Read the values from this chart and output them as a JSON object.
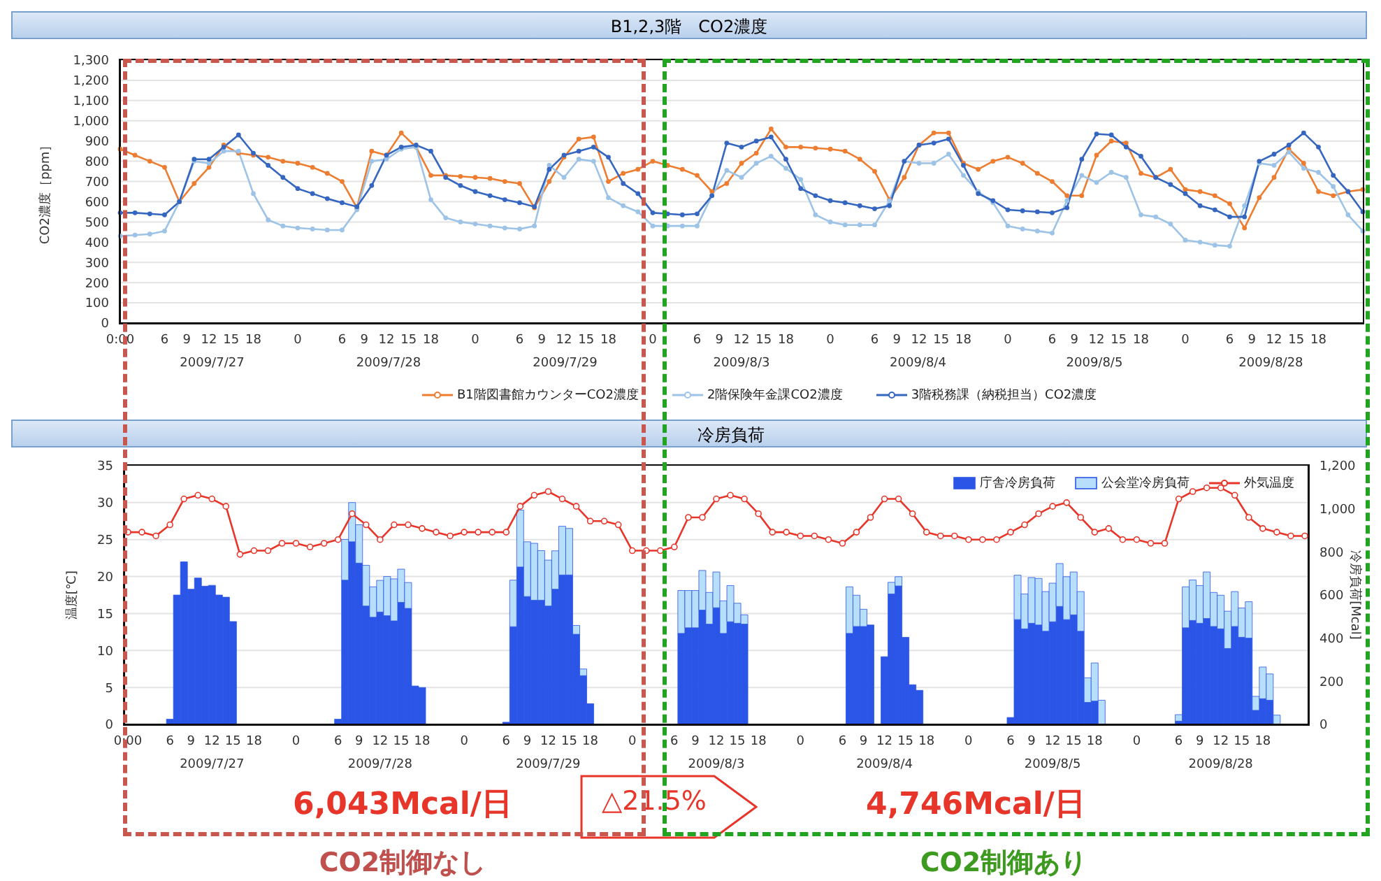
{
  "chart_data": [
    {
      "type": "line",
      "title": "B1,2,3階　CO2濃度",
      "ylabel": "CO2濃度［ppm］",
      "legend": "bottom",
      "grid": "y",
      "marker": "circle",
      "categories": [
        "0:00",
        null,
        null,
        null,
        null,
        null,
        "6",
        null,
        null,
        "9",
        null,
        null,
        "12",
        null,
        null,
        "15",
        null,
        null,
        "18",
        null,
        null,
        null,
        null,
        null,
        "0",
        null,
        null,
        null,
        null,
        null,
        "6",
        null,
        null,
        "9",
        null,
        null,
        "12",
        null,
        null,
        "15",
        null,
        null,
        "18",
        null,
        null,
        null,
        null,
        null,
        "0",
        null,
        null,
        null,
        null,
        null,
        "6",
        null,
        null,
        "9",
        null,
        null,
        "12",
        null,
        null,
        "15",
        null,
        null,
        "18",
        null,
        null,
        null,
        null,
        null,
        "0",
        null,
        null,
        null,
        null,
        null,
        "6",
        null,
        null,
        "9",
        null,
        null,
        "12",
        null,
        null,
        "15",
        null,
        null,
        "18",
        null,
        null,
        null,
        null,
        null,
        "0",
        null,
        null,
        null,
        null,
        null,
        "6",
        null,
        null,
        "9",
        null,
        null,
        "12",
        null,
        null,
        "15",
        null,
        null,
        "18",
        null,
        null,
        null,
        null,
        null,
        "0",
        null,
        null,
        null,
        null,
        null,
        "6",
        null,
        null,
        "9",
        null,
        null,
        "12",
        null,
        null,
        "15",
        null,
        null,
        "18",
        null,
        null,
        null,
        null,
        null,
        "0",
        null,
        null,
        null,
        null,
        null,
        "6",
        null,
        null,
        "9",
        null,
        null,
        "12",
        null,
        null,
        "15",
        null,
        null,
        "18",
        null,
        null,
        null,
        null,
        null,
        null
      ],
      "ylim": [
        0,
        1300
      ],
      "yticks": [
        0,
        100,
        200,
        300,
        400,
        500,
        600,
        700,
        800,
        900,
        {
          "value": 1000,
          "label": "1,000"
        },
        {
          "value": 1100,
          "label": "1,100"
        },
        {
          "value": 1200,
          "label": "1,200"
        },
        {
          "value": 1300,
          "label": "1,300"
        }
      ],
      "annotations": [
        "2009/7/27",
        "2009/7/28",
        "2009/7/29",
        "2009/8/3",
        "2009/8/4",
        "2009/8/5",
        "2009/8/28"
      ],
      "series": [
        {
          "name": "B1階図書館カウンターCO2濃度",
          "color": "#ed7d31",
          "values": [
            860,
            null,
            830,
            null,
            800,
            null,
            770,
            null,
            600,
            null,
            690,
            null,
            770,
            null,
            880,
            null,
            840,
            null,
            830,
            null,
            820,
            null,
            800,
            null,
            790,
            null,
            770,
            null,
            740,
            null,
            700,
            null,
            570,
            null,
            850,
            null,
            830,
            null,
            940,
            null,
            870,
            null,
            730,
            null,
            730,
            null,
            725,
            null,
            720,
            null,
            715,
            null,
            700,
            null,
            690,
            null,
            570,
            null,
            700,
            null,
            820,
            null,
            910,
            null,
            920,
            null,
            700,
            null,
            740,
            null,
            760,
            null,
            800,
            null,
            780,
            null,
            760,
            null,
            730,
            null,
            650,
            null,
            690,
            null,
            790,
            null,
            840,
            null,
            960,
            null,
            870,
            null,
            870,
            null,
            865,
            null,
            860,
            null,
            850,
            null,
            810,
            null,
            750,
            null,
            610,
            null,
            720,
            null,
            880,
            null,
            940,
            null,
            940,
            null,
            790,
            null,
            760,
            null,
            800,
            null,
            820,
            null,
            790,
            null,
            740,
            null,
            700,
            null,
            630,
            null,
            630,
            null,
            830,
            null,
            900,
            null,
            890,
            null,
            740,
            null,
            720,
            null,
            760,
            null,
            660,
            null,
            650,
            null,
            630,
            null,
            590,
            null,
            470,
            null,
            620,
            null,
            720,
            null,
            860,
            null,
            790,
            null,
            650,
            null,
            630,
            null,
            650,
            null,
            660
          ]
        },
        {
          "name": "2階保険年金課CO2濃度",
          "color": "#9dc3e6",
          "values": [
            430,
            null,
            435,
            null,
            440,
            null,
            455,
            null,
            600,
            null,
            800,
            null,
            790,
            null,
            850,
            null,
            850,
            null,
            640,
            null,
            510,
            null,
            480,
            null,
            470,
            null,
            465,
            null,
            460,
            null,
            460,
            null,
            560,
            null,
            800,
            null,
            810,
            null,
            860,
            null,
            870,
            null,
            610,
            null,
            520,
            null,
            500,
            null,
            490,
            null,
            480,
            null,
            470,
            null,
            465,
            null,
            480,
            null,
            780,
            null,
            720,
            null,
            810,
            null,
            800,
            null,
            620,
            null,
            580,
            null,
            550,
            null,
            480,
            null,
            480,
            null,
            480,
            null,
            480,
            null,
            630,
            null,
            755,
            null,
            720,
            null,
            790,
            null,
            825,
            null,
            765,
            null,
            710,
            null,
            535,
            null,
            500,
            null,
            485,
            null,
            485,
            null,
            485,
            null,
            605,
            null,
            800,
            null,
            790,
            null,
            790,
            null,
            835,
            null,
            730,
            null,
            650,
            null,
            595,
            null,
            480,
            null,
            465,
            null,
            455,
            null,
            445,
            null,
            605,
            null,
            730,
            null,
            695,
            null,
            745,
            null,
            720,
            null,
            535,
            null,
            525,
            null,
            490,
            null,
            410,
            null,
            400,
            null,
            385,
            null,
            380,
            null,
            580,
            null,
            790,
            null,
            780,
            null,
            845,
            null,
            765,
            null,
            745,
            null,
            675,
            null,
            535,
            null,
            455
          ]
        },
        {
          "name": "3階税務課（納税担当）CO2濃度",
          "color": "#3566c0",
          "values": [
            545,
            null,
            545,
            null,
            540,
            null,
            535,
            null,
            600,
            null,
            810,
            null,
            810,
            null,
            870,
            null,
            930,
            null,
            840,
            null,
            780,
            null,
            720,
            null,
            665,
            null,
            640,
            null,
            615,
            null,
            595,
            null,
            575,
            null,
            680,
            null,
            830,
            null,
            870,
            null,
            880,
            null,
            850,
            null,
            720,
            null,
            680,
            null,
            650,
            null,
            630,
            null,
            610,
            null,
            595,
            null,
            575,
            null,
            760,
            null,
            830,
            null,
            850,
            null,
            870,
            null,
            820,
            null,
            690,
            null,
            640,
            null,
            545,
            null,
            540,
            null,
            535,
            null,
            540,
            null,
            630,
            null,
            890,
            null,
            870,
            null,
            900,
            null,
            920,
            null,
            810,
            null,
            665,
            null,
            630,
            null,
            605,
            null,
            595,
            null,
            580,
            null,
            565,
            null,
            580,
            null,
            800,
            null,
            880,
            null,
            890,
            null,
            910,
            null,
            780,
            null,
            640,
            null,
            605,
            null,
            560,
            null,
            555,
            null,
            550,
            null,
            545,
            null,
            570,
            null,
            810,
            null,
            935,
            null,
            930,
            null,
            870,
            null,
            825,
            null,
            720,
            null,
            685,
            null,
            640,
            null,
            580,
            null,
            560,
            null,
            525,
            null,
            525,
            null,
            800,
            null,
            835,
            null,
            880,
            null,
            940,
            null,
            870,
            null,
            730,
            null,
            650,
            null,
            550
          ]
        }
      ]
    },
    {
      "type": "bar",
      "title": "冷房負荷",
      "ylabel": "温度[℃]",
      "y2label": "冷房負荷[Mcal]",
      "legend": "top right",
      "grid": "y",
      "marker": "circle",
      "stacked": true,
      "categories": [
        "0:00",
        null,
        null,
        null,
        null,
        null,
        "6",
        null,
        null,
        "9",
        null,
        null,
        "12",
        null,
        null,
        "15",
        null,
        null,
        "18",
        null,
        null,
        null,
        null,
        null,
        "0",
        null,
        null,
        null,
        null,
        null,
        "6",
        null,
        null,
        "9",
        null,
        null,
        "12",
        null,
        null,
        "15",
        null,
        null,
        "18",
        null,
        null,
        null,
        null,
        null,
        "0",
        null,
        null,
        null,
        null,
        null,
        "6",
        null,
        null,
        "9",
        null,
        null,
        "12",
        null,
        null,
        "15",
        null,
        null,
        "18",
        null,
        null,
        null,
        null,
        null,
        "0",
        null,
        null,
        null,
        null,
        null,
        "6",
        null,
        null,
        "9",
        null,
        null,
        "12",
        null,
        null,
        "15",
        null,
        null,
        "18",
        null,
        null,
        null,
        null,
        null,
        "0",
        null,
        null,
        null,
        null,
        null,
        "6",
        null,
        null,
        "9",
        null,
        null,
        "12",
        null,
        null,
        "15",
        null,
        null,
        "18",
        null,
        null,
        null,
        null,
        null,
        "0",
        null,
        null,
        null,
        null,
        null,
        "6",
        null,
        null,
        "9",
        null,
        null,
        "12",
        null,
        null,
        "15",
        null,
        null,
        "18",
        null,
        null,
        null,
        null,
        null,
        "0",
        null,
        null,
        null,
        null,
        null,
        "6",
        null,
        null,
        "9",
        null,
        null,
        "12",
        null,
        null,
        "15",
        null,
        null,
        "18",
        null,
        null,
        null,
        null,
        null,
        null
      ],
      "ylim": [
        0,
        35
      ],
      "yticks": [
        0,
        5,
        10,
        15,
        20,
        25,
        30,
        35
      ],
      "y2lim": [
        0,
        1200
      ],
      "y2ticks": [
        0,
        200,
        400,
        600,
        800,
        {
          "value": 1000,
          "label": "1,000"
        },
        {
          "value": 1200,
          "label": "1,200"
        }
      ],
      "annotations": [
        "2009/7/27",
        "2009/7/28",
        "2009/7/29",
        "2009/8/3",
        "2009/8/4",
        "2009/8/5",
        "2009/8/28",
        "6,043Mcal/日",
        "△21.5%",
        "4,746Mcal/日",
        "CO2制御なし",
        "CO2制御あり"
      ],
      "series": [
        {
          "name": "庁舎冷房負荷",
          "color": "#2b55e6",
          "axis": "y2",
          "values": [
            null,
            null,
            null,
            null,
            null,
            null,
            24,
            600,
            754,
            627,
            679,
            641,
            645,
            600,
            590,
            477,
            null,
            null,
            null,
            null,
            null,
            null,
            null,
            null,
            null,
            null,
            null,
            null,
            null,
            null,
            24,
            669,
            847,
            748,
            549,
            497,
            521,
            504,
            480,
            566,
            538,
            178,
            171,
            null,
            null,
            null,
            null,
            null,
            null,
            null,
            null,
            null,
            null,
            null,
            10,
            453,
            730,
            593,
            576,
            576,
            549,
            627,
            693,
            693,
            418,
            226,
            96,
            null,
            null,
            null,
            null,
            null,
            null,
            null,
            null,
            null,
            null,
            null,
            null,
            422,
            448,
            448,
            530,
            465,
            541,
            422,
            476,
            469,
            465,
            null,
            null,
            null,
            null,
            null,
            null,
            null,
            null,
            null,
            null,
            null,
            null,
            null,
            null,
            422,
            454,
            454,
            461,
            null,
            314,
            605,
            642,
            404,
            184,
            158,
            null,
            null,
            null,
            null,
            null,
            null,
            null,
            null,
            null,
            null,
            null,
            null,
            32,
            486,
            443,
            469,
            461,
            432,
            476,
            547,
            486,
            508,
            432,
            102,
            108,
            0,
            null,
            null,
            null,
            null,
            null,
            null,
            null,
            null,
            null,
            null,
            15,
            448,
            482,
            469,
            491,
            454,
            443,
            352,
            454,
            404,
            400,
            65,
            119,
            112,
            0,
            null,
            null,
            null,
            null
          ]
        },
        {
          "name": "公会堂冷房負荷",
          "color": "#b7defa",
          "axis": "y2",
          "values": [
            null,
            null,
            null,
            null,
            null,
            null,
            0,
            0,
            0,
            0,
            0,
            0,
            0,
            0,
            0,
            0,
            null,
            null,
            null,
            null,
            null,
            null,
            null,
            null,
            null,
            null,
            null,
            null,
            null,
            null,
            0,
            189,
            182,
            178,
            189,
            141,
            147,
            182,
            195,
            154,
            120,
            0,
            0,
            null,
            null,
            null,
            null,
            null,
            null,
            null,
            null,
            null,
            null,
            null,
            0,
            216,
            264,
            254,
            264,
            230,
            213,
            178,
            226,
            216,
            41,
            31,
            0,
            null,
            null,
            null,
            null,
            null,
            null,
            null,
            null,
            null,
            null,
            null,
            null,
            199,
            173,
            173,
            184,
            147,
            166,
            151,
            168,
            93,
            43,
            null,
            null,
            null,
            null,
            null,
            null,
            null,
            null,
            null,
            null,
            null,
            null,
            null,
            null,
            216,
            145,
            80,
            0,
            null,
            0,
            54,
            43,
            0,
            0,
            0,
            null,
            null,
            null,
            null,
            null,
            null,
            null,
            null,
            null,
            null,
            null,
            null,
            0,
            206,
            162,
            212,
            216,
            184,
            179,
            199,
            199,
            199,
            184,
            114,
            177,
            112,
            null,
            null,
            null,
            null,
            null,
            null,
            null,
            null,
            null,
            null,
            30,
            190,
            188,
            175,
            216,
            158,
            156,
            173,
            162,
            136,
            169,
            65,
            147,
            122,
            43,
            null,
            null,
            null,
            null
          ]
        },
        {
          "name": "外気温度",
          "type": "line",
          "color": "#e8352a",
          "axis": "y",
          "values": [
            26,
            null,
            26,
            null,
            25.5,
            null,
            27,
            null,
            30.5,
            null,
            31,
            null,
            30.5,
            null,
            29.5,
            null,
            23,
            null,
            23.5,
            null,
            23.5,
            null,
            24.5,
            null,
            24.5,
            null,
            24,
            null,
            24.5,
            null,
            25,
            null,
            28.5,
            null,
            27,
            null,
            25,
            null,
            27,
            null,
            27,
            null,
            26.5,
            null,
            26,
            null,
            25.5,
            null,
            26,
            null,
            26,
            null,
            26,
            null,
            26,
            null,
            29.5,
            null,
            31,
            null,
            31.5,
            null,
            30.5,
            null,
            29.5,
            null,
            27.5,
            null,
            27.5,
            null,
            27,
            null,
            23.5,
            null,
            23.5,
            null,
            23.5,
            null,
            24,
            null,
            28,
            null,
            28,
            null,
            30.5,
            null,
            31,
            null,
            30.5,
            null,
            28.5,
            null,
            26,
            null,
            26,
            null,
            25.5,
            null,
            25.5,
            null,
            25,
            null,
            24.5,
            null,
            26,
            null,
            28,
            null,
            30.5,
            null,
            30.5,
            null,
            28.5,
            null,
            26,
            null,
            25.5,
            null,
            25.5,
            null,
            25,
            null,
            25,
            null,
            25,
            null,
            26,
            null,
            27,
            null,
            28.5,
            null,
            29.5,
            null,
            30,
            null,
            28,
            null,
            26,
            null,
            26.5,
            null,
            25,
            null,
            25,
            null,
            24.5,
            null,
            24.5,
            null,
            30.5,
            null,
            31.5,
            null,
            32,
            null,
            32,
            null,
            31,
            null,
            28,
            null,
            26.5,
            null,
            26,
            null,
            25.5,
            null,
            25.5
          ]
        }
      ]
    }
  ]
}
